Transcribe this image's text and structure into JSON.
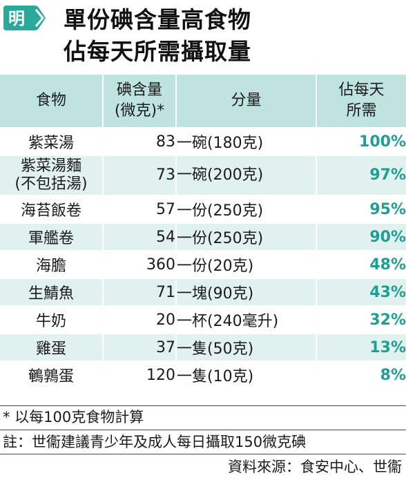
{
  "logo": {
    "char": "明",
    "color": "#2aa89a"
  },
  "title": {
    "line1": "單份碘含量高食物",
    "line2": "佔每天所需攝取量"
  },
  "table": {
    "headers": {
      "food": "食物",
      "iodine_line1": "碘含量",
      "iodine_line2": "(微克)*",
      "portion": "分量",
      "pct_line1": "佔每天",
      "pct_line2": "所需"
    },
    "rows": [
      {
        "food": "紫菜湯",
        "food2": "",
        "iodine": "83",
        "portion": "一碗(180克)",
        "pct": "100%"
      },
      {
        "food": "紫菜湯麵",
        "food2": "(不包括湯)",
        "iodine": "73",
        "portion": "一碗(200克)",
        "pct": "97%"
      },
      {
        "food": "海苔飯卷",
        "food2": "",
        "iodine": "57",
        "portion": "一份(250克)",
        "pct": "95%"
      },
      {
        "food": "軍艦卷",
        "food2": "",
        "iodine": "54",
        "portion": "一份(250克)",
        "pct": "90%"
      },
      {
        "food": "海膽",
        "food2": "",
        "iodine": "360",
        "portion": "一份(20克)",
        "pct": "48%"
      },
      {
        "food": "生鯖魚",
        "food2": "",
        "iodine": "71",
        "portion": "一塊(90克)",
        "pct": "43%"
      },
      {
        "food": "牛奶",
        "food2": "",
        "iodine": "20",
        "portion": "一杯(240毫升)",
        "pct": "32%"
      },
      {
        "food": "雞蛋",
        "food2": "",
        "iodine": "37",
        "portion": "一隻(50克)",
        "pct": "13%"
      },
      {
        "food": "鵪鶉蛋",
        "food2": "",
        "iodine": "120",
        "portion": "一隻(10克)",
        "pct": "8%"
      }
    ]
  },
  "footnote": "* 以每100克食物計算",
  "note": "註：世衞建議青少年及成人每日攝取150微克碘",
  "source": "資料來源：食安中心、世衞"
}
